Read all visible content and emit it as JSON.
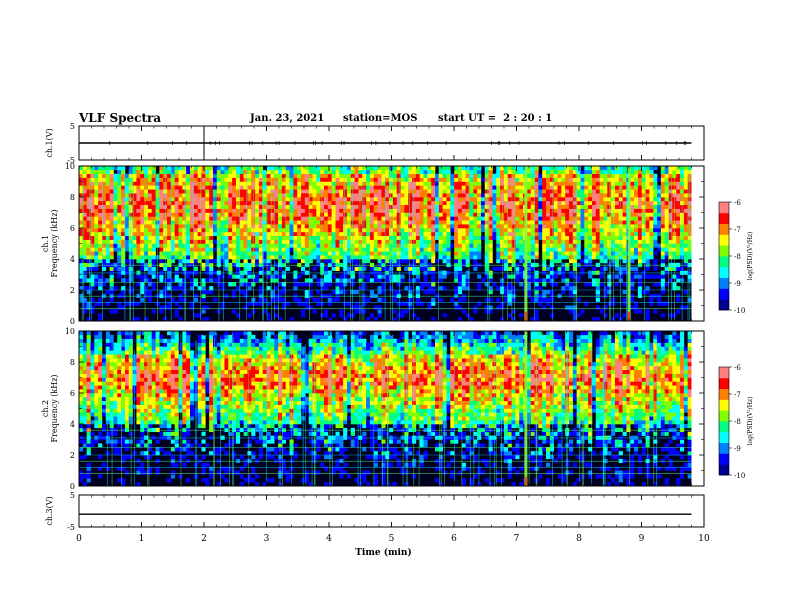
{
  "header": {
    "title": "VLF Spectra",
    "date": "Jan. 23, 2021",
    "station": "station=MOS",
    "start_ut": "start UT =  2 : 20 : 1"
  },
  "colors": {
    "colormap": [
      "#000090",
      "#0000ff",
      "#0080ff",
      "#00ffff",
      "#00ff80",
      "#80ff00",
      "#ffff00",
      "#ff8000",
      "#ff0000",
      "#ff8080",
      "#ffffff"
    ]
  },
  "chart_data": [
    {
      "type": "line",
      "panel": "ch1-waveform",
      "ylabel": "ch.1(V)",
      "ylim": [
        -5,
        5
      ],
      "yticks": [
        "5",
        "-5"
      ],
      "series": [
        {
          "values": [
            0,
            0
          ]
        }
      ],
      "x": [
        0,
        9.8
      ]
    },
    {
      "type": "heatmap",
      "panel": "ch1-spectrogram",
      "ylabel_top": "ch.1",
      "ylabel": "Frequency (kHz)",
      "ylim": [
        0,
        10
      ],
      "yticks": [
        "0",
        "2",
        "4",
        "6",
        "8",
        "10"
      ],
      "xlim": [
        0,
        10
      ],
      "data_end_min": 9.8,
      "colorbar": {
        "label": "log(PSD)(V²/Hz)",
        "range": [
          -10,
          -6
        ],
        "ticks": [
          "-6",
          "-7",
          "-8",
          "-9",
          "-10"
        ]
      },
      "intense_band_khz": [
        5.5,
        9.5
      ],
      "strong_vertical_events_min": [
        7.15,
        8.8
      ]
    },
    {
      "type": "heatmap",
      "panel": "ch2-spectrogram",
      "ylabel_top": "ch.2",
      "ylabel": "Frequency (kHz)",
      "ylim": [
        0,
        10
      ],
      "yticks": [
        "0",
        "2",
        "4",
        "6",
        "8",
        "10"
      ],
      "xlim": [
        0,
        10
      ],
      "data_end_min": 9.8,
      "colorbar": {
        "label": "log(PSD)(V²/Hz)",
        "range": [
          -10,
          -6
        ],
        "ticks": [
          "-6",
          "-7",
          "-8",
          "-9",
          "-10"
        ]
      },
      "intense_band_khz": [
        5.5,
        8.5
      ],
      "strong_vertical_events_min": [
        7.15
      ]
    },
    {
      "type": "line",
      "panel": "ch3-waveform",
      "ylabel": "ch.3(V)",
      "ylim": [
        -5,
        5
      ],
      "yticks": [
        "5",
        "-5"
      ],
      "xlabel": "Time (min)",
      "xlim": [
        0,
        10
      ],
      "xticks": [
        "0",
        "1",
        "2",
        "3",
        "4",
        "5",
        "6",
        "7",
        "8",
        "9",
        "10"
      ],
      "series": [
        {
          "values": [
            -1,
            -1
          ]
        }
      ],
      "x": [
        0,
        9.8
      ]
    }
  ]
}
